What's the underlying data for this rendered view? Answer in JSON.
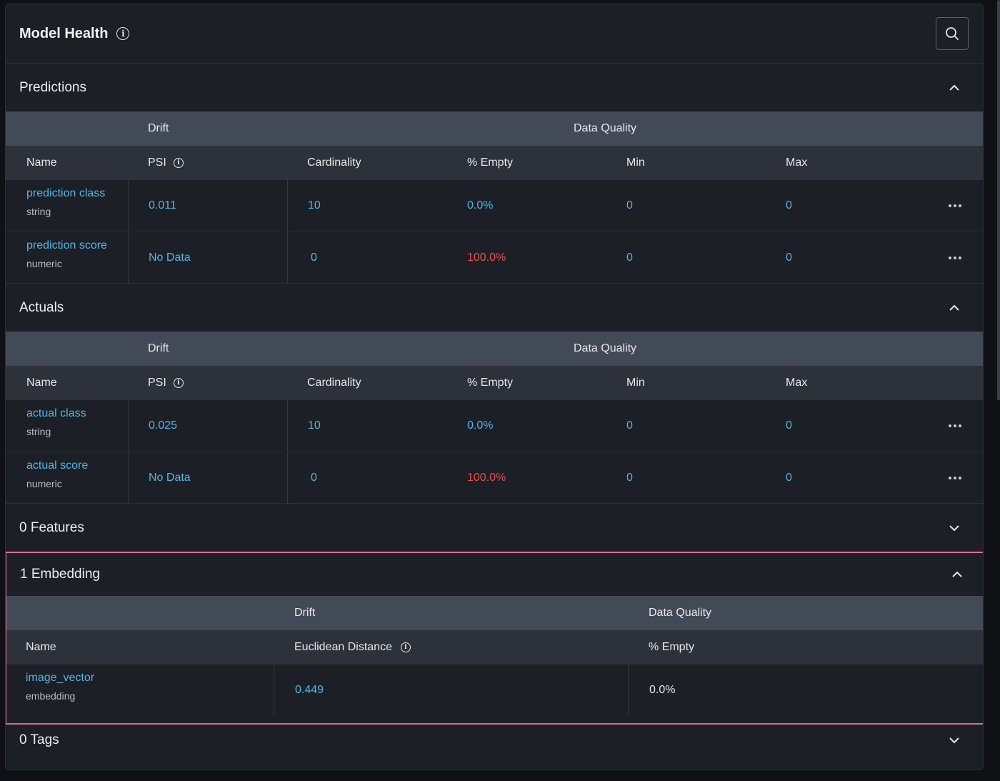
{
  "header": {
    "title": "Model Health"
  },
  "sections": {
    "predictions": {
      "title": "Predictions",
      "group_drift": "Drift",
      "group_quality": "Data Quality",
      "columns": [
        "Name",
        "PSI",
        "Cardinality",
        "% Empty",
        "Min",
        "Max"
      ],
      "rows": [
        {
          "name": "prediction class",
          "type": "string",
          "psi": "0.011",
          "cardinality": "10",
          "empty": "0.0%",
          "min": "0",
          "max": "0"
        },
        {
          "name": "prediction score",
          "type": "numeric",
          "psi": "No Data",
          "cardinality": "0",
          "empty": "100.0%",
          "min": "0",
          "max": "0"
        }
      ]
    },
    "actuals": {
      "title": "Actuals",
      "group_drift": "Drift",
      "group_quality": "Data Quality",
      "columns": [
        "Name",
        "PSI",
        "Cardinality",
        "% Empty",
        "Min",
        "Max"
      ],
      "rows": [
        {
          "name": "actual class",
          "type": "string",
          "psi": "0.025",
          "cardinality": "10",
          "empty": "0.0%",
          "min": "0",
          "max": "0"
        },
        {
          "name": "actual score",
          "type": "numeric",
          "psi": "No Data",
          "cardinality": "0",
          "empty": "100.0%",
          "min": "0",
          "max": "0"
        }
      ]
    },
    "features": {
      "title": "0 Features"
    },
    "embedding": {
      "title": "1 Embedding",
      "group_drift": "Drift",
      "group_quality": "Data Quality",
      "columns": [
        "Name",
        "Euclidean Distance",
        "% Empty"
      ],
      "rows": [
        {
          "name": "image_vector",
          "type": "embedding",
          "distance": "0.449",
          "empty": "0.0%"
        }
      ]
    },
    "tags": {
      "title": "0 Tags"
    }
  },
  "colors": {
    "link": "#4fb6e8",
    "alert": "#e0514f",
    "highlight_border": "#e06a9a"
  },
  "icons": {
    "info": "info-icon",
    "search": "search-icon",
    "chevron_up": "chevron-up-icon",
    "chevron_down": "chevron-down-icon",
    "more": "more-horizontal-icon"
  }
}
